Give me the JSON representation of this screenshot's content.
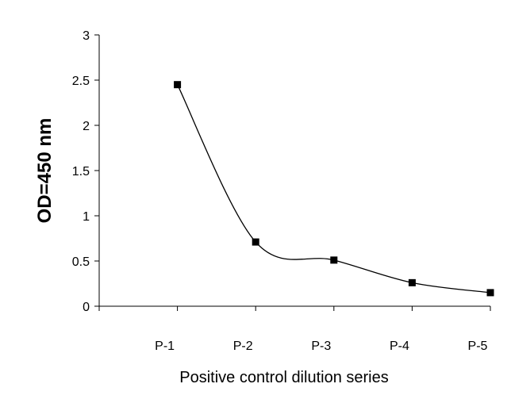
{
  "chart_data": {
    "type": "line",
    "title": "",
    "xlabel": "Positive control dilution series",
    "ylabel": "OD=450 nm",
    "categories": [
      "P-1",
      "P-2",
      "P-3",
      "P-4",
      "P-5"
    ],
    "series": [
      {
        "values": [
          2.45,
          0.71,
          0.51,
          0.26,
          0.15
        ]
      }
    ],
    "ylim": [
      0,
      3
    ],
    "yticks": [
      "0",
      "0.5",
      "1",
      "1.5",
      "2",
      "2.5",
      "3"
    ],
    "grid": false,
    "legend": "none",
    "marker": "square",
    "smooth": true,
    "line_color": "#000000"
  }
}
